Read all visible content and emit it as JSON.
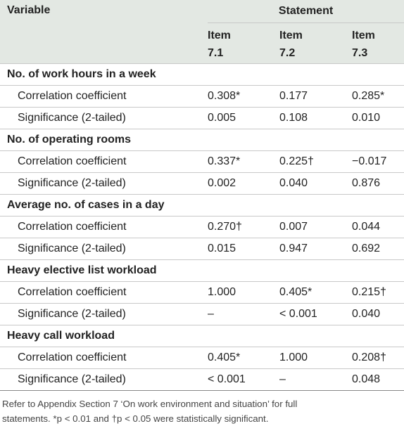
{
  "table": {
    "header": {
      "variable": "Variable",
      "statement": "Statement",
      "items": [
        [
          "Item",
          "7.1"
        ],
        [
          "Item",
          "7.2"
        ],
        [
          "Item",
          "7.3"
        ]
      ]
    },
    "groups": [
      {
        "title": "No. of work hours in a week",
        "rows": [
          {
            "label": "Correlation coefficient",
            "values": [
              "0.308*",
              "0.177",
              "0.285*"
            ]
          },
          {
            "label": "Significance (2-tailed)",
            "values": [
              "0.005",
              "0.108",
              "0.010"
            ]
          }
        ]
      },
      {
        "title": "No. of operating rooms",
        "rows": [
          {
            "label": "Correlation coefficient",
            "values": [
              "0.337*",
              "0.225†",
              "−0.017"
            ]
          },
          {
            "label": "Significance (2-tailed)",
            "values": [
              "0.002",
              "0.040",
              "0.876"
            ]
          }
        ]
      },
      {
        "title": "Average no. of cases in a day",
        "rows": [
          {
            "label": "Correlation coefficient",
            "values": [
              "0.270†",
              "0.007",
              "0.044"
            ]
          },
          {
            "label": "Significance (2-tailed)",
            "values": [
              "0.015",
              "0.947",
              "0.692"
            ]
          }
        ]
      },
      {
        "title": "Heavy elective list workload",
        "rows": [
          {
            "label": "Correlation coefficient",
            "values": [
              "1.000",
              "0.405*",
              "0.215†"
            ]
          },
          {
            "label": "Significance (2-tailed)",
            "values": [
              "–",
              "< 0.001",
              "0.040"
            ]
          }
        ]
      },
      {
        "title": "Heavy call workload",
        "rows": [
          {
            "label": "Correlation coefficient",
            "values": [
              "0.405*",
              "1.000",
              "0.208†"
            ]
          },
          {
            "label": "Significance (2-tailed)",
            "values": [
              "< 0.001",
              "–",
              "0.048"
            ]
          }
        ]
      }
    ]
  },
  "footnote": [
    "Refer to Appendix Section 7 ‘On work environment and situation’ for full",
    "statements. *p < 0.01 and †p < 0.05 were statistically significant."
  ]
}
